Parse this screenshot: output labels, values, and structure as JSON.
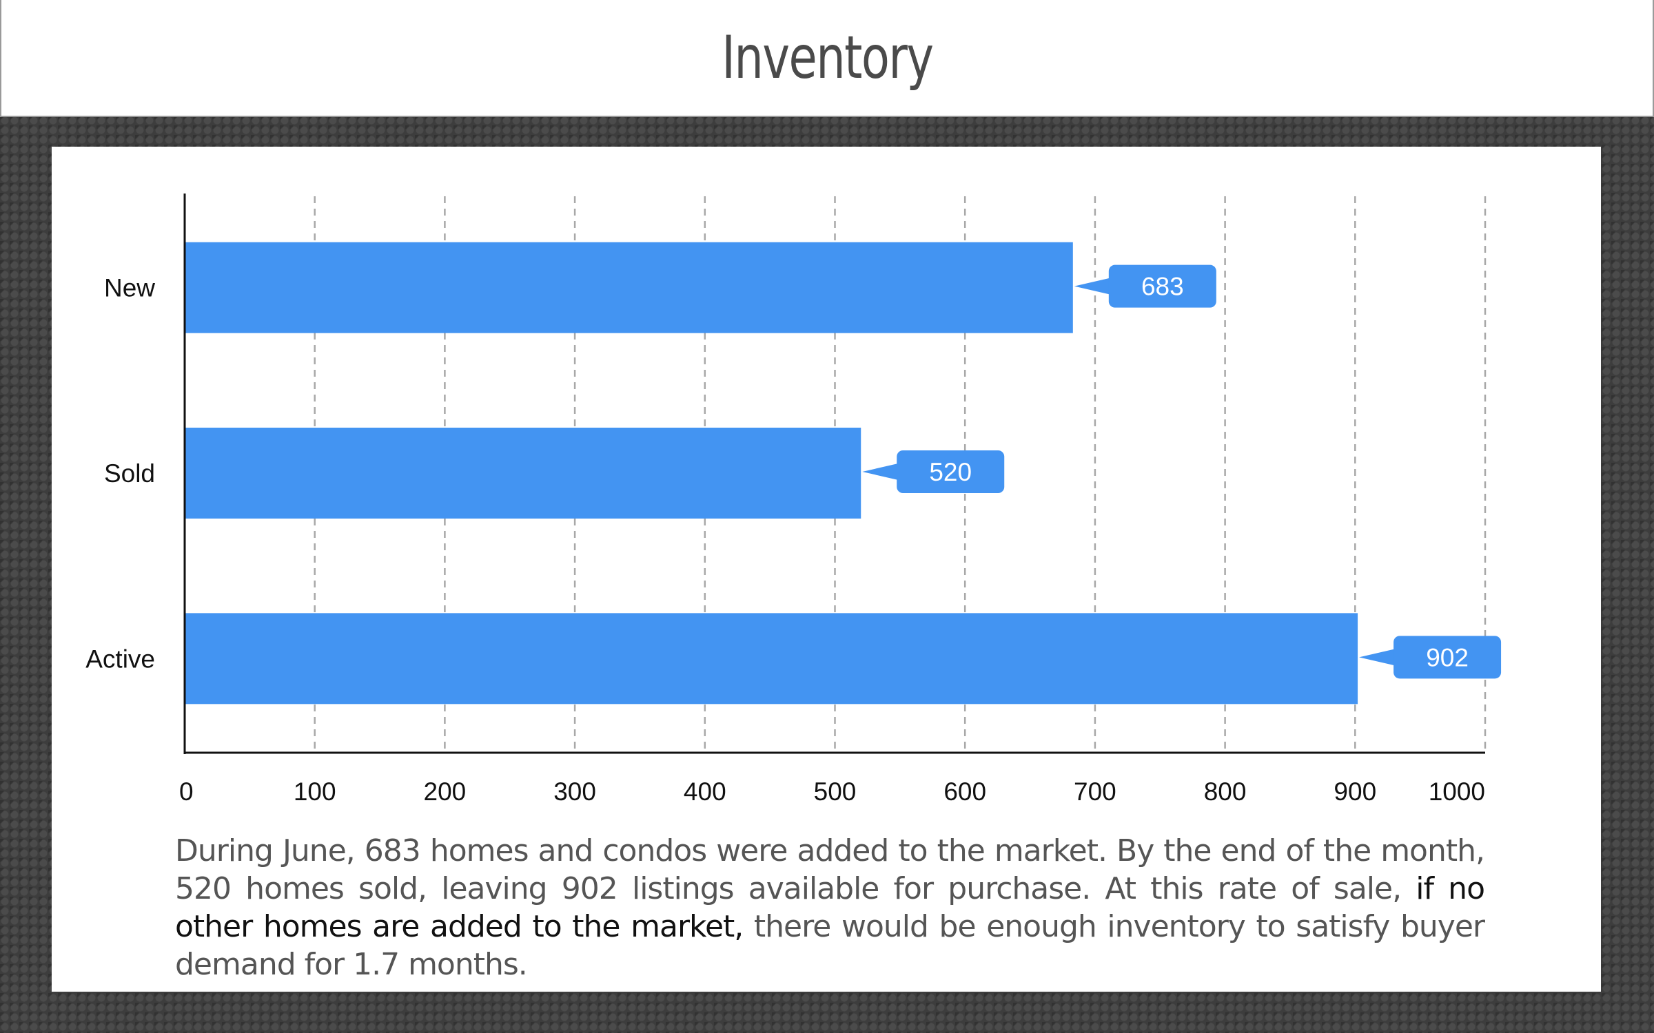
{
  "header": {
    "title": "Inventory"
  },
  "description": {
    "part1": "During June, 683 homes and condos were added to the market. By the end of the month, 520 homes sold,  leaving 902 listings available for purchase. At this rate of sale, ",
    "highlight": "if no other homes are added to the market,",
    "part2": "  there would be enough inventory to satisfy buyer demand for 1.7 months."
  },
  "chart_data": {
    "type": "bar",
    "orientation": "horizontal",
    "categories": [
      "New",
      "Sold",
      "Active"
    ],
    "values": [
      683,
      520,
      902
    ],
    "data_labels": [
      "683",
      "520",
      "902"
    ],
    "xlim": [
      0,
      1000
    ],
    "xticks": [
      0,
      100,
      200,
      300,
      400,
      500,
      600,
      700,
      800,
      900,
      1000
    ],
    "grid": "vertical dashed",
    "bar_color": "#4394f2"
  }
}
